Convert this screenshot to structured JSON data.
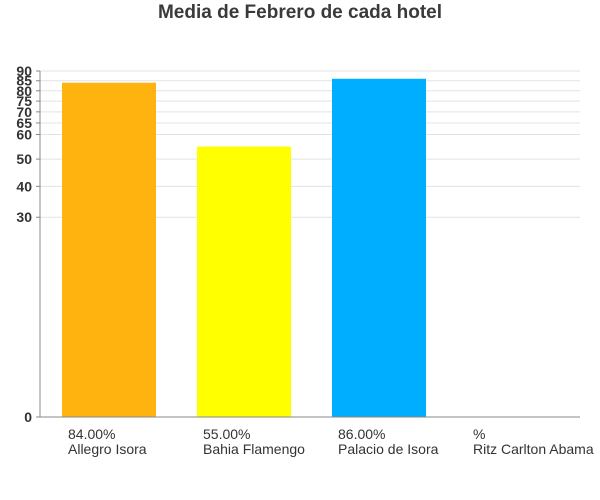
{
  "chart_data": {
    "type": "bar",
    "title": "Media de Febrero de cada hotel",
    "xlabel": "",
    "ylabel": "",
    "categories": [
      "Allegro Isora",
      "Bahia Flamengo",
      "Palacio de Isora",
      "Ritz Carlton Abama"
    ],
    "values": [
      84,
      55,
      86,
      null
    ],
    "data_labels": [
      "84.00%",
      "55.00%",
      "86.00%",
      "%"
    ],
    "colors": [
      "#FFB30F",
      "#FFFF00",
      "#00AEFF",
      "#CCCCCC"
    ],
    "y_scale": "square-root",
    "y_ticks": [
      0,
      30,
      40,
      50,
      60,
      65,
      70,
      75,
      80,
      85,
      90
    ],
    "ylim": [
      0,
      90
    ],
    "grid": true,
    "legend": "none"
  }
}
